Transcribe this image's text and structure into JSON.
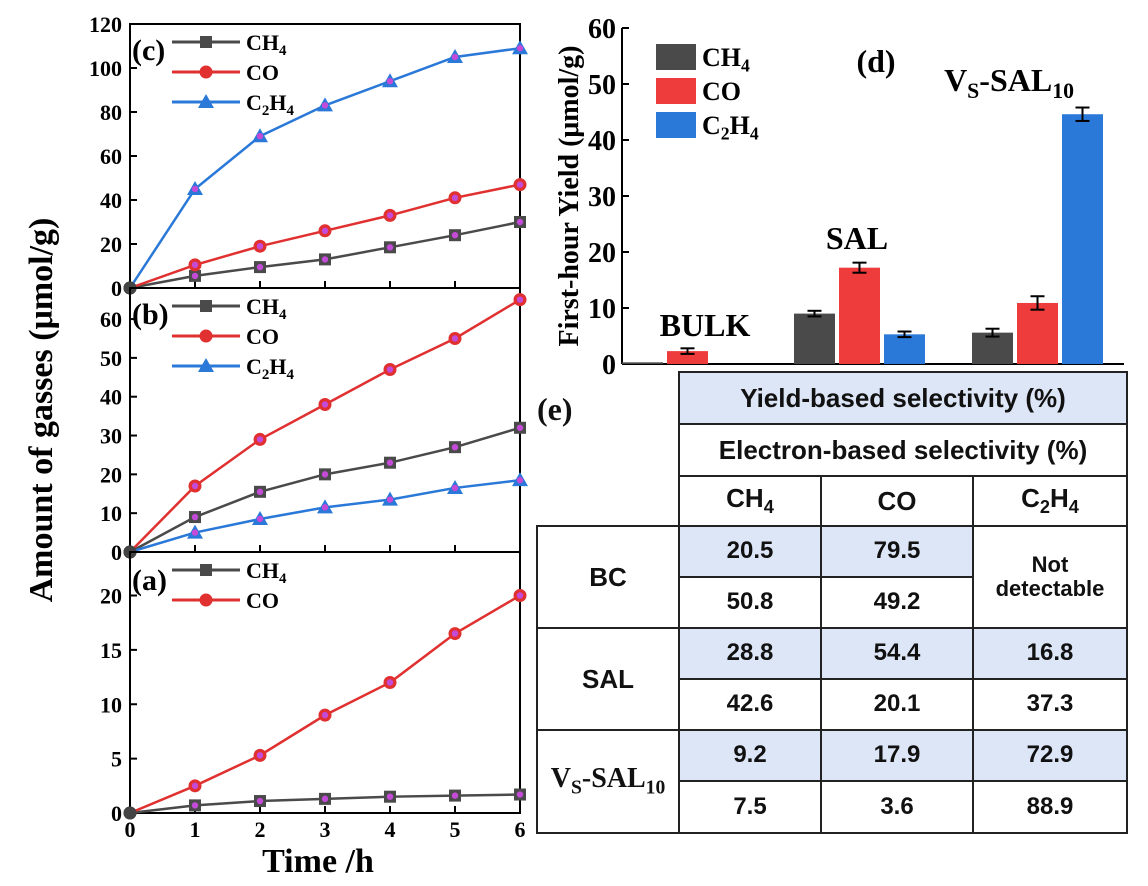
{
  "ylabel_shared": "Amount of gasses (μmol/g)",
  "xlabel": "Time /h",
  "chart_data": [
    {
      "panel": "(c)",
      "type": "line",
      "x": [
        0,
        1,
        2,
        3,
        4,
        5,
        6
      ],
      "ylim": [
        0,
        120
      ],
      "yticks": [
        "0",
        "20",
        "40",
        "60",
        "80",
        "100",
        "120"
      ],
      "xticks": [
        "0",
        "1",
        "2",
        "3",
        "4",
        "5",
        "6"
      ],
      "legend_position": "top-left",
      "series": [
        {
          "name": "CH4",
          "label": "CH",
          "sub": "4",
          "color": "#4a4a4a",
          "marker": "square",
          "values": [
            0,
            5.5,
            9.5,
            13,
            18.5,
            24,
            30
          ]
        },
        {
          "name": "CO",
          "label": "CO",
          "sub": "",
          "color": "#e03030",
          "marker": "circle",
          "values": [
            0,
            10.5,
            19,
            26,
            33,
            41,
            47
          ]
        },
        {
          "name": "C2H4",
          "label": "C",
          "sub": "2",
          "label2": "H",
          "sub2": "4",
          "color": "#2a78d8",
          "marker": "triangle",
          "values": [
            0,
            45,
            69,
            83,
            94,
            105,
            109
          ]
        }
      ]
    },
    {
      "panel": "(b)",
      "type": "line",
      "x": [
        0,
        1,
        2,
        3,
        4,
        5,
        6
      ],
      "ylim": [
        0,
        68
      ],
      "yticks": [
        "0",
        "10",
        "20",
        "30",
        "40",
        "50",
        "60"
      ],
      "xticks": [
        "0",
        "1",
        "2",
        "3",
        "4",
        "5",
        "6"
      ],
      "legend_position": "top-left",
      "series": [
        {
          "name": "CH4",
          "label": "CH",
          "sub": "4",
          "color": "#4a4a4a",
          "marker": "square",
          "values": [
            0,
            9,
            15.5,
            20,
            23,
            27,
            32
          ]
        },
        {
          "name": "CO",
          "label": "CO",
          "sub": "",
          "color": "#e03030",
          "marker": "circle",
          "values": [
            0,
            17,
            29,
            38,
            47,
            55,
            65
          ]
        },
        {
          "name": "C2H4",
          "label": "C",
          "sub": "2",
          "label2": "H",
          "sub2": "4",
          "color": "#2a78d8",
          "marker": "triangle",
          "values": [
            0,
            5,
            8.5,
            11.5,
            13.5,
            16.5,
            18.5
          ]
        }
      ]
    },
    {
      "panel": "(a)",
      "type": "line",
      "x": [
        0,
        1,
        2,
        3,
        4,
        5,
        6
      ],
      "ylim": [
        0,
        24
      ],
      "yticks": [
        "0",
        "5",
        "10",
        "15",
        "20"
      ],
      "xticks": [
        "0",
        "1",
        "2",
        "3",
        "4",
        "5",
        "6"
      ],
      "legend_position": "top-left",
      "series": [
        {
          "name": "CH4",
          "label": "CH",
          "sub": "4",
          "color": "#4a4a4a",
          "marker": "square",
          "values": [
            0,
            0.7,
            1.1,
            1.3,
            1.5,
            1.6,
            1.7
          ]
        },
        {
          "name": "CO",
          "label": "CO",
          "sub": "",
          "color": "#e03030",
          "marker": "circle",
          "values": [
            0,
            2.5,
            5.3,
            9,
            12,
            16.5,
            20
          ]
        }
      ]
    },
    {
      "panel": "(d)",
      "type": "bar",
      "ylabel": "First-hour Yield (μmol/g)",
      "ylim": [
        0,
        60
      ],
      "yticks": [
        "0",
        "10",
        "20",
        "30",
        "40",
        "50",
        "60"
      ],
      "legend_position": "top-left",
      "groups": [
        {
          "label": "BULK"
        },
        {
          "label": "SAL"
        },
        {
          "label": "V",
          "sub": "S",
          "label2": "-SAL",
          "sub2": "10"
        }
      ],
      "series": [
        {
          "name": "CH4",
          "label": "CH",
          "sub": "4",
          "color": "#4a4a4a",
          "values": [
            0.3,
            9,
            5.6
          ],
          "errors": [
            0,
            0.5,
            0.7
          ]
        },
        {
          "name": "CO",
          "label": "CO",
          "sub": "",
          "color": "#ee3b3b",
          "values": [
            2.3,
            17.2,
            10.9
          ],
          "errors": [
            0.5,
            0.9,
            1.2
          ]
        },
        {
          "name": "C2H4",
          "label": "C",
          "sub": "2",
          "label2": "H",
          "sub2": "4",
          "color": "#2a78d8",
          "values": [
            0,
            5.3,
            44.6
          ],
          "errors": [
            0,
            0.5,
            1.2
          ]
        }
      ]
    }
  ],
  "table": {
    "panel": "(e)",
    "header_yield": "Yield-based selectivity (%)",
    "header_electron": "Electron-based selectivity (%)",
    "cols": {
      "ch4": "CH",
      "ch4_sub": "4",
      "co": "CO",
      "c2h4_a": "C",
      "c2h4_sub1": "2",
      "c2h4_b": "H",
      "c2h4_sub2": "4"
    },
    "rows": [
      {
        "label": "BC",
        "yield": [
          "20.5",
          "79.5"
        ],
        "electron": [
          "50.8",
          "49.2"
        ],
        "c2h4": "Not detectable"
      },
      {
        "label": "SAL",
        "yield": [
          "28.8",
          "54.4",
          "16.8"
        ],
        "electron": [
          "42.6",
          "20.1",
          "37.3"
        ]
      },
      {
        "label": "V",
        "label_sub": "S",
        "label2": "-SAL",
        "label_sub2": "10",
        "yield": [
          "9.2",
          "17.9",
          "72.9"
        ],
        "electron": [
          "7.5",
          "3.6",
          "88.9"
        ]
      }
    ]
  }
}
